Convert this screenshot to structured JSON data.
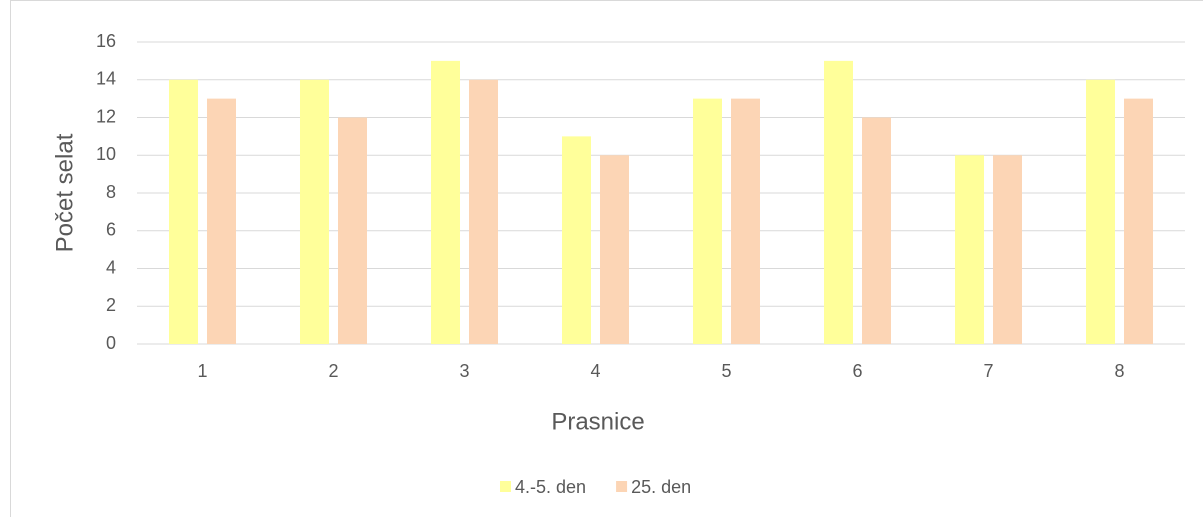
{
  "chart_data": {
    "type": "bar",
    "x_label": "Prasnice",
    "y_label": "Počet selat",
    "categories": [
      "1",
      "2",
      "3",
      "4",
      "5",
      "6",
      "7",
      "8"
    ],
    "series": [
      {
        "name": "4.-5. den",
        "color": "#ffff9a",
        "values": [
          14,
          14,
          15,
          11,
          13,
          15,
          10,
          14
        ]
      },
      {
        "name": "25. den",
        "color": "#fcd5b5",
        "values": [
          13,
          12,
          14,
          10,
          13,
          12,
          10,
          13
        ]
      }
    ],
    "ylim": [
      0,
      16
    ],
    "yticks": [
      0,
      2,
      4,
      6,
      8,
      10,
      12,
      14,
      16
    ],
    "grid": true,
    "legend": "bottom"
  }
}
